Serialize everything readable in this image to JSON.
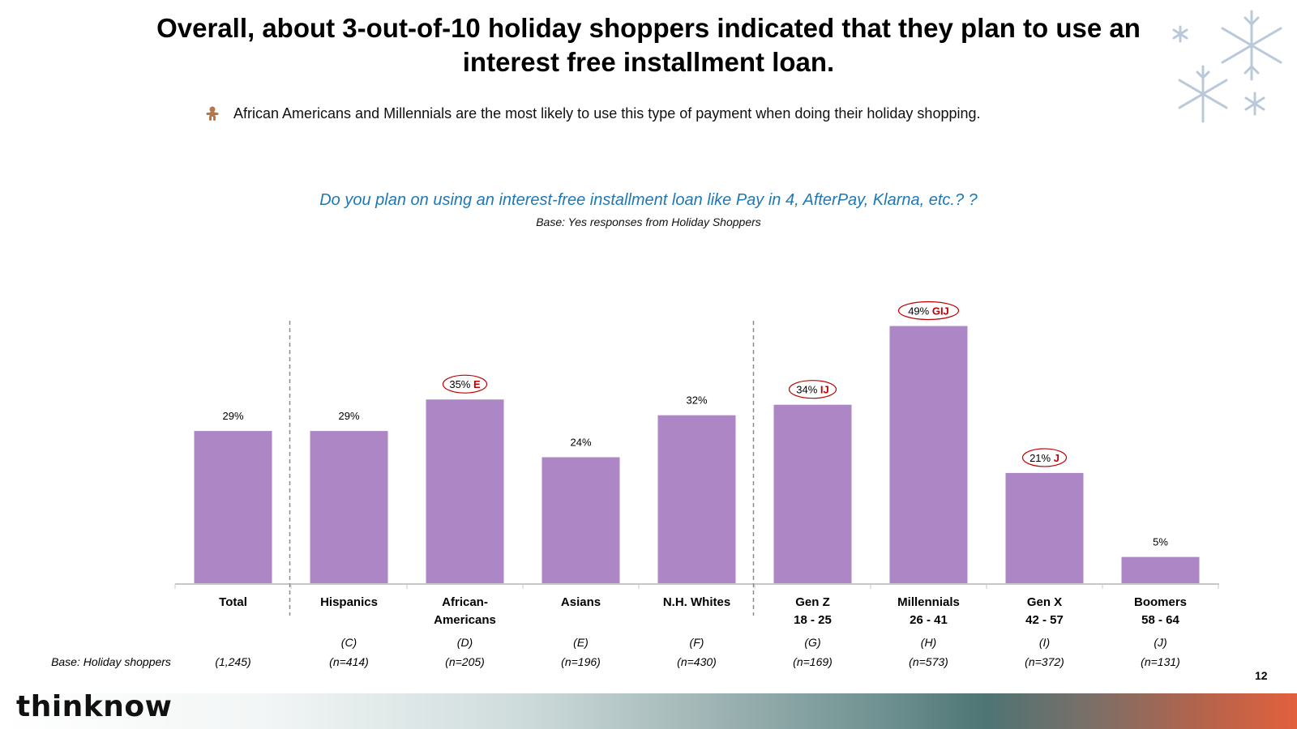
{
  "header": {
    "title": "Overall, about 3-out-of-10 holiday shoppers indicated that they plan to use an interest free installment loan.",
    "bullet": "African Americans and Millennials are the most likely to use this type of payment when doing their holiday shopping."
  },
  "footer": {
    "brand": "thinknow",
    "page_number": "12"
  },
  "colors": {
    "bar": "#ad86c6",
    "question": "#1f78b4",
    "sig": "#c00000"
  },
  "chart_data": {
    "type": "bar",
    "title": "Do you plan on using an interest-free installment loan like Pay in 4, AfterPay, Klarna, etc.? ?",
    "subtitle": "Base:  Yes responses from Holiday Shoppers",
    "ylim": [
      0,
      50
    ],
    "base_label": "Base: Holiday shoppers",
    "categories": [
      {
        "line1": "Total",
        "line2": "",
        "letter": "",
        "n": "(1,245)",
        "value": 29,
        "label": "29%",
        "sig": "",
        "circled": false
      },
      {
        "line1": "Hispanics",
        "line2": "",
        "letter": "(C)",
        "n": "(n=414)",
        "value": 29,
        "label": "29%",
        "sig": "",
        "circled": false
      },
      {
        "line1": "African-",
        "line2": "Americans",
        "letter": "(D)",
        "n": "(n=205)",
        "value": 35,
        "label": "35%",
        "sig": "E",
        "circled": true
      },
      {
        "line1": "Asians",
        "line2": "",
        "letter": "(E)",
        "n": "(n=196)",
        "value": 24,
        "label": "24%",
        "sig": "",
        "circled": false
      },
      {
        "line1": "N.H. Whites",
        "line2": "",
        "letter": "(F)",
        "n": "(n=430)",
        "value": 32,
        "label": "32%",
        "sig": "",
        "circled": false
      },
      {
        "line1": "Gen Z",
        "line2": "18 - 25",
        "letter": "(G)",
        "n": "(n=169)",
        "value": 34,
        "label": "34%",
        "sig": "IJ",
        "circled": true
      },
      {
        "line1": "Millennials",
        "line2": "26 - 41",
        "letter": "(H)",
        "n": "(n=573)",
        "value": 49,
        "label": "49%",
        "sig": "GIJ",
        "circled": true
      },
      {
        "line1": "Gen X",
        "line2": "42 - 57",
        "letter": "(I)",
        "n": "(n=372)",
        "value": 21,
        "label": "21%",
        "sig": "J",
        "circled": true
      },
      {
        "line1": "Boomers",
        "line2": "58 - 64",
        "letter": "(J)",
        "n": "(n=131)",
        "value": 5,
        "label": "5%",
        "sig": "",
        "circled": false
      }
    ]
  }
}
